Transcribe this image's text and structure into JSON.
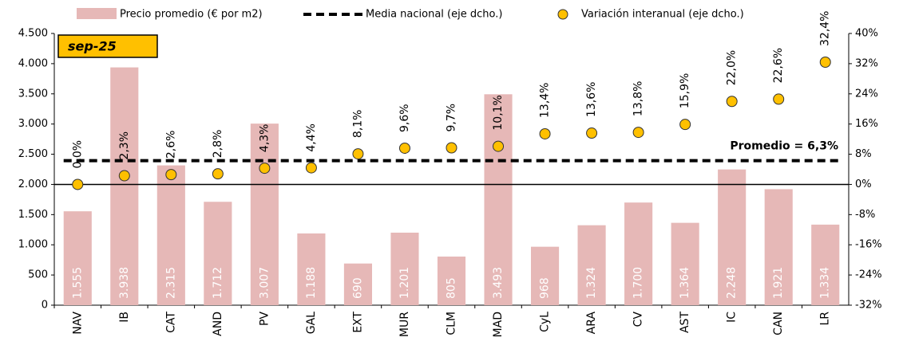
{
  "chart_data": {
    "type": "combo",
    "categories": [
      "NAV",
      "IB",
      "CAT",
      "AND",
      "PV",
      "GAL",
      "EXT",
      "MUR",
      "CLM",
      "MAD",
      "CyL",
      "ARA",
      "CV",
      "AST",
      "IC",
      "CAN",
      "LR"
    ],
    "series": [
      {
        "name": "Precio promedio (€ por m2)",
        "type": "bar",
        "color": "#e6b8b7",
        "values": [
          1555,
          3938,
          2315,
          1712,
          3007,
          1188,
          690,
          1201,
          805,
          3493,
          968,
          1324,
          1700,
          1364,
          2248,
          1921,
          1334
        ],
        "value_labels": [
          "1.555",
          "3.938",
          "2.315",
          "1.712",
          "3.007",
          "1.188",
          "690",
          "1.201",
          "805",
          "3.493",
          "968",
          "1.324",
          "1.700",
          "1.364",
          "2.248",
          "1.921",
          "1.334"
        ]
      },
      {
        "name": "Media nacional (eje dcho.)",
        "type": "line",
        "axis": "y2",
        "color": "#000000",
        "values": [
          6.3,
          6.3,
          6.3,
          6.3,
          6.3,
          6.3,
          6.3,
          6.3,
          6.3,
          6.3,
          6.3,
          6.3,
          6.3,
          6.3,
          6.3,
          6.3,
          6.3
        ]
      },
      {
        "name": "Variación interanual (eje dcho.)",
        "type": "scatter",
        "axis": "y2",
        "color": "#ffc000",
        "values": [
          0.0,
          2.3,
          2.6,
          2.8,
          4.3,
          4.4,
          8.1,
          9.6,
          9.7,
          10.1,
          13.4,
          13.6,
          13.8,
          15.9,
          22.0,
          22.6,
          32.4
        ],
        "value_labels": [
          "0,0%",
          "2,3%",
          "2,6%",
          "2,8%",
          "4,3%",
          "4,4%",
          "8,1%",
          "9,6%",
          "9,7%",
          "10,1%",
          "13,4%",
          "13,6%",
          "13,8%",
          "15,9%",
          "22,0%",
          "22,6%",
          "32,4%"
        ]
      }
    ],
    "ylim": [
      0,
      4500
    ],
    "yticks": [
      0,
      {
        "value": 500,
        "label": "500"
      },
      {
        "value": 1000,
        "label": "1.000"
      },
      {
        "value": 1500,
        "label": "1.500"
      },
      {
        "value": 2000,
        "label": "2.000"
      },
      {
        "value": 2500,
        "label": "2.500"
      },
      {
        "value": 3000,
        "label": "3.000"
      },
      {
        "value": 3500,
        "label": "3.500"
      },
      {
        "value": 4000,
        "label": "4.000"
      },
      {
        "value": 4500,
        "label": "4.500"
      }
    ],
    "y2lim": [
      -32,
      40
    ],
    "y2ticks": [
      {
        "value": -32,
        "label": "-32%"
      },
      {
        "value": -24,
        "label": "-24%"
      },
      {
        "value": -16,
        "label": "-16%"
      },
      {
        "value": -8,
        "label": "-8%"
      },
      {
        "value": 0,
        "label": "0%"
      },
      {
        "value": 8,
        "label": "8%"
      },
      {
        "value": 16,
        "label": "16%"
      },
      {
        "value": 24,
        "label": "24%"
      },
      {
        "value": 32,
        "label": "32%"
      },
      {
        "value": 40,
        "label": "40%"
      }
    ],
    "annotations": [
      {
        "text": "sep-25"
      },
      {
        "text": "Promedio = 6,3%",
        "value": 6.3
      }
    ]
  }
}
